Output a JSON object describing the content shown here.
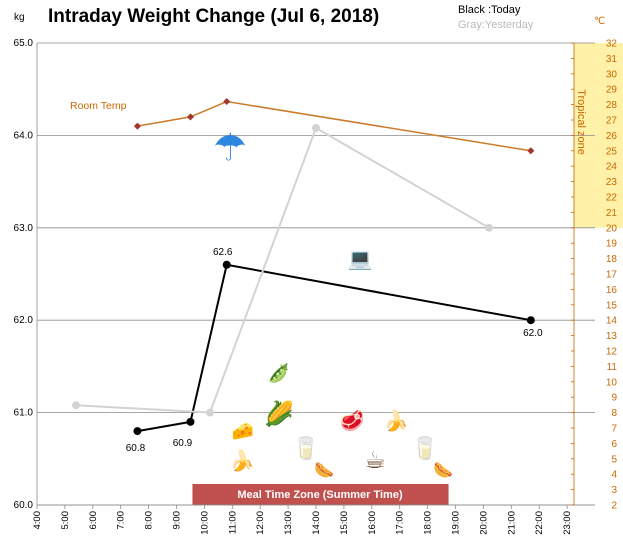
{
  "chart_data": {
    "type": "line",
    "title": "Intraday Weight Change (Jul 6, 2018)",
    "y_unit": "kg",
    "y2_unit": "℃",
    "legend": {
      "today": "Black :Today",
      "yesterday": "Gray:Yesterday"
    },
    "ylim": [
      60.0,
      65.0
    ],
    "yticks": [
      "60.0",
      "61.0",
      "62.0",
      "63.0",
      "64.0",
      "65.0"
    ],
    "xlim": [
      4,
      24
    ],
    "xticks": [
      "4:00",
      "5:00",
      "6:00",
      "7:00",
      "8:00",
      "9:00",
      "10:00",
      "11:00",
      "12:00",
      "13:00",
      "14:00",
      "15:00",
      "16:00",
      "17:00",
      "18:00",
      "19:00",
      "20:00",
      "21:00",
      "22:00",
      "23:00"
    ],
    "y2lim": [
      2,
      32
    ],
    "y2ticks": [
      "2",
      "3",
      "4",
      "5",
      "6",
      "7",
      "8",
      "9",
      "10",
      "11",
      "12",
      "13",
      "14",
      "15",
      "16",
      "17",
      "18",
      "19",
      "20",
      "21",
      "22",
      "23",
      "24",
      "25",
      "26",
      "27",
      "28",
      "29",
      "30",
      "31",
      "32"
    ],
    "tropical_zone": {
      "label": "Tropical zone",
      "from": 20,
      "to": 32,
      "color": "#fff2a8"
    },
    "series": [
      {
        "name": "Black :Today",
        "color": "#000000",
        "x": [
          7.6,
          9.5,
          10.8,
          21.7
        ],
        "y": [
          60.8,
          60.9,
          62.6,
          62.0
        ],
        "labels": [
          "60.8",
          "60.9",
          "62.6",
          "62.0"
        ]
      },
      {
        "name": "Gray:Yesterday",
        "color": "#d3d3d3",
        "x": [
          5.4,
          10.2,
          14.0,
          20.2
        ],
        "y": [
          61.08,
          61.0,
          64.08,
          63.0
        ],
        "labels": []
      },
      {
        "name": "Room Temp",
        "color": "#cc7a29",
        "axis": "right",
        "x": [
          7.6,
          9.5,
          10.8,
          21.7
        ],
        "y": [
          26.6,
          27.2,
          28.2,
          25.0
        ],
        "labels": []
      }
    ],
    "meal_zone": {
      "label": "Meal Time Zone  (Summer Time)",
      "from": 9.5,
      "to": 18.5,
      "color": "#c0504d"
    },
    "annotations": {
      "room_temp_label": "Room Temp",
      "icons": [
        {
          "name": "umbrella",
          "glyph": "☂",
          "color": "#2e86de"
        },
        {
          "name": "office-worker",
          "glyph": "💻",
          "color": "#000000"
        },
        {
          "name": "beans",
          "glyph": "🫛",
          "color": "#2e7d32"
        },
        {
          "name": "corn",
          "glyph": "🌽",
          "color": "#e6b800"
        },
        {
          "name": "cheese",
          "glyph": "🧀",
          "color": "#f4c542"
        },
        {
          "name": "banana",
          "glyph": "🍌",
          "color": "#e6c619"
        },
        {
          "name": "water",
          "glyph": "🥛",
          "color": "#a8c8e8"
        },
        {
          "name": "meat",
          "glyph": "🥩",
          "color": "#c0392b"
        },
        {
          "name": "banana2",
          "glyph": "🍌",
          "color": "#e6c619"
        },
        {
          "name": "coffee",
          "glyph": "☕",
          "color": "#6b4226"
        },
        {
          "name": "water2",
          "glyph": "🥛",
          "color": "#a8c8e8"
        },
        {
          "name": "sausage",
          "glyph": "🌭",
          "color": "#8b4513"
        },
        {
          "name": "sausage2",
          "glyph": "🌭",
          "color": "#8b4513"
        }
      ]
    }
  }
}
